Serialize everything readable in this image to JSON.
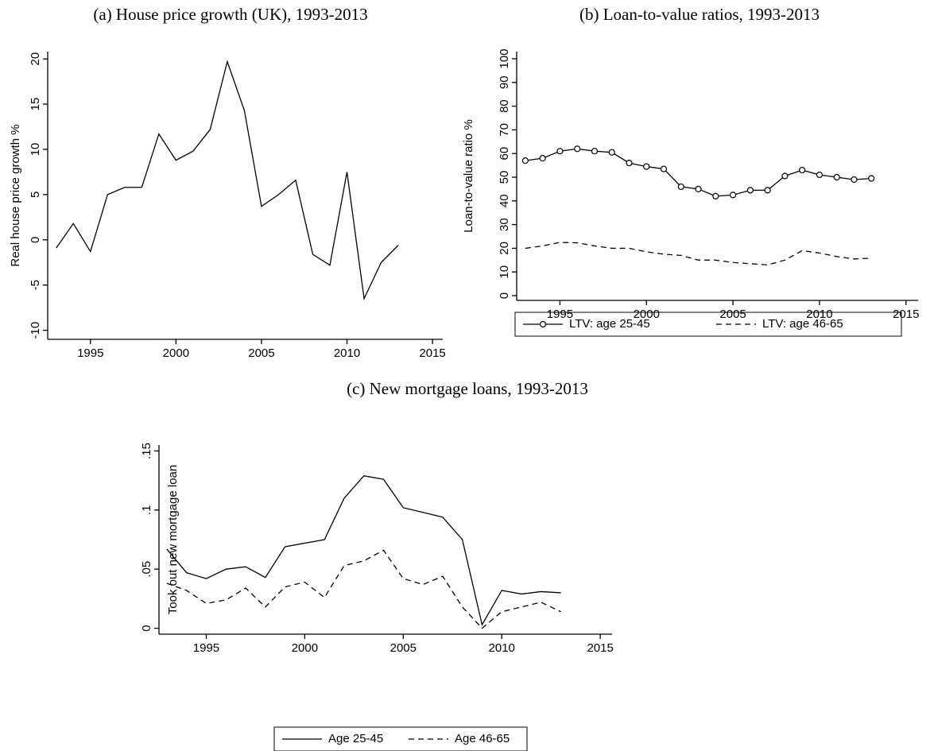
{
  "chart_data": [
    {
      "type": "line",
      "title": "(a) House price growth (UK), 1993-2013",
      "y_label": "Real house price growth %",
      "x": [
        1993,
        1994,
        1995,
        1996,
        1997,
        1998,
        1999,
        2000,
        2001,
        2002,
        2003,
        2004,
        2005,
        2006,
        2007,
        2008,
        2009,
        2010,
        2011,
        2012,
        2013
      ],
      "series": [
        {
          "color": "#000000",
          "dash": "solid",
          "values": [
            -0.9,
            1.8,
            -1.3,
            5.0,
            5.8,
            5.8,
            11.7,
            8.8,
            9.8,
            12.2,
            19.7,
            14.3,
            3.7,
            5.0,
            6.6,
            -1.6,
            -2.8,
            7.5,
            -6.5,
            -2.5,
            -0.6
          ]
        }
      ],
      "xlim": [
        1992.5,
        2015.6
      ],
      "xticks": [
        1995,
        2000,
        2005,
        2010,
        2015
      ],
      "ylim": [
        -11,
        20.8
      ],
      "yticks": [
        -10,
        -5,
        0,
        5,
        10,
        15,
        20
      ]
    },
    {
      "type": "line",
      "title": "(b) Loan-to-value ratios, 1993-2013",
      "y_label": "Loan-to-value ratio %",
      "x": [
        1993,
        1994,
        1995,
        1996,
        1997,
        1998,
        1999,
        2000,
        2001,
        2002,
        2003,
        2004,
        2005,
        2006,
        2007,
        2008,
        2009,
        2010,
        2011,
        2012,
        2013
      ],
      "series": [
        {
          "name": "LTV: age 25-45",
          "color": "#000000",
          "dash": "solid",
          "marker": "circle",
          "values": [
            57,
            58,
            61,
            62,
            61,
            60.5,
            56,
            54.5,
            53.5,
            46,
            45,
            42,
            42.5,
            44.5,
            44.5,
            50.5,
            53,
            51,
            50,
            49,
            49.5
          ]
        },
        {
          "name": "LTV: age 46-65",
          "color": "#000000",
          "dash": "dashed",
          "values": [
            20,
            21,
            22.5,
            22.3,
            21,
            20,
            20,
            18.5,
            17.5,
            17,
            15,
            15,
            14,
            13.5,
            13,
            15,
            19,
            18,
            16.5,
            15.5,
            15.8
          ]
        }
      ],
      "xlim": [
        1992.5,
        2015.7
      ],
      "xticks": [
        1995,
        2000,
        2005,
        2010,
        2015
      ],
      "ylim": [
        -2,
        103
      ],
      "yticks": [
        0,
        10,
        20,
        30,
        40,
        50,
        60,
        70,
        80,
        90,
        100
      ],
      "legend": "bottom"
    },
    {
      "type": "line",
      "title": "(c) New mortgage loans, 1993-2013",
      "y_label": "Took out new mortgage loan",
      "x": [
        1993,
        1994,
        1995,
        1996,
        1997,
        1998,
        1999,
        2000,
        2001,
        2002,
        2003,
        2004,
        2005,
        2006,
        2007,
        2008,
        2009,
        2010,
        2011,
        2012,
        2013
      ],
      "series": [
        {
          "name": "Age 25-45",
          "color": "#000000",
          "dash": "solid",
          "values": [
            0.067,
            0.047,
            0.042,
            0.05,
            0.052,
            0.043,
            0.069,
            0.072,
            0.075,
            0.11,
            0.129,
            0.126,
            0.102,
            0.098,
            0.094,
            0.075,
            0.003,
            0.032,
            0.029,
            0.031,
            0.03
          ]
        },
        {
          "name": "Age 46-65",
          "color": "#000000",
          "dash": "dashed",
          "values": [
            0.038,
            0.032,
            0.021,
            0.024,
            0.034,
            0.018,
            0.035,
            0.039,
            0.026,
            0.053,
            0.057,
            0.066,
            0.042,
            0.037,
            0.044,
            0.018,
            0.0,
            0.014,
            0.018,
            0.022,
            0.014
          ]
        }
      ],
      "xlim": [
        1992.6,
        2015.6
      ],
      "xticks": [
        1995,
        2000,
        2005,
        2010,
        2015
      ],
      "ylim": [
        -0.005,
        0.155
      ],
      "yticks": [
        0,
        {
          "value": 0.05,
          "label": ".05"
        },
        {
          "value": 0.1,
          "label": ".1"
        },
        {
          "value": 0.15,
          "label": ".15"
        }
      ],
      "legend": "bottom"
    }
  ]
}
